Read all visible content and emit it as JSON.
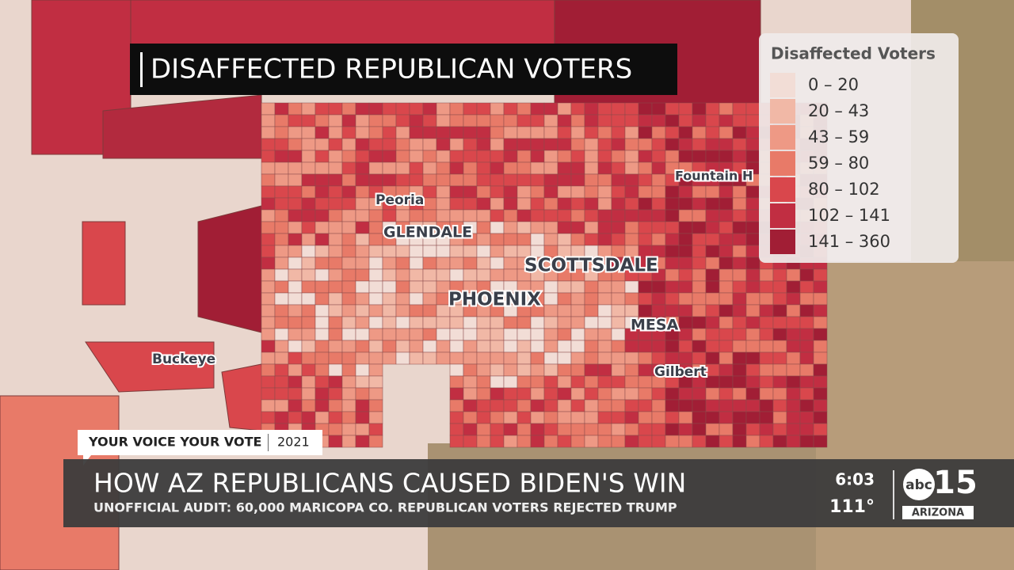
{
  "title_banner": "DISAFFECTED REPUBLICAN VOTERS",
  "legend": {
    "title": "Disaffected Voters",
    "items": [
      {
        "label": "0 – 20",
        "color": "#f2ddd6"
      },
      {
        "label": "20 – 43",
        "color": "#f1b8a6"
      },
      {
        "label": "43 – 59",
        "color": "#ee9985"
      },
      {
        "label": "59 – 80",
        "color": "#e87a68"
      },
      {
        "label": "80 – 102",
        "color": "#d9474c"
      },
      {
        "label": "102 – 141",
        "color": "#c12e42"
      },
      {
        "label": "141 – 360",
        "color": "#a11e35"
      }
    ]
  },
  "places": [
    "Peoria",
    "GLENDALE",
    "SCOTTSDALE",
    "PHOENIX",
    "MESA",
    "Gilbert",
    "Buckeye",
    "Fountain H"
  ],
  "lower_third": {
    "tag": "YOUR VOICE YOUR VOTE",
    "year": "2021",
    "headline": "HOW AZ REPUBLICANS CAUSED BIDEN'S WIN",
    "subheadline": "UNOFFICIAL AUDIT: 60,000 MARICOPA CO. REPUBLICAN VOTERS REJECTED TRUMP"
  },
  "clock": {
    "time": "6:03",
    "temperature": "111°"
  },
  "logo": {
    "network": "abc",
    "channel": "15",
    "region": "ARIZONA"
  }
}
